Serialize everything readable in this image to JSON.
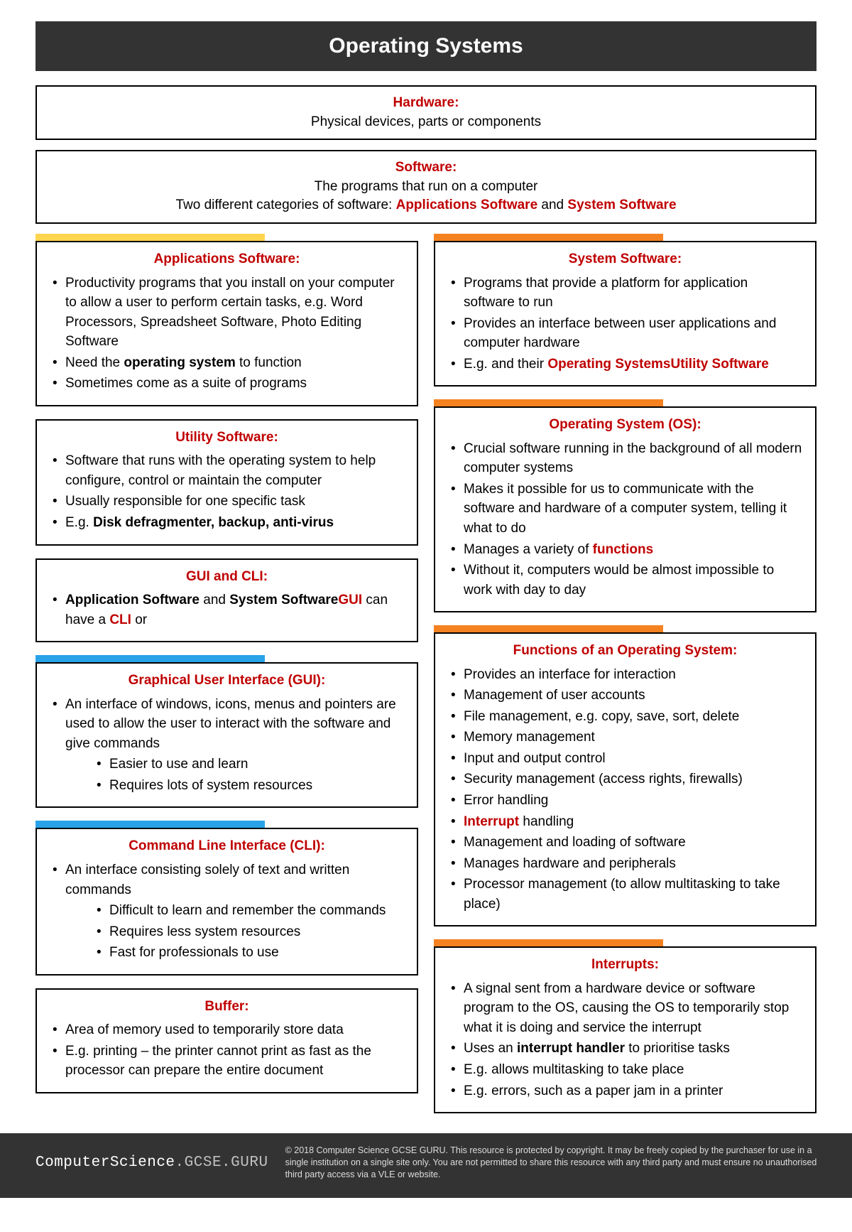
{
  "colors": {
    "title_bg": "#333333",
    "title_fg": "#ffffff",
    "heading_red": "#c00000",
    "body_text": "#000000",
    "tab_yellow": "#ffd54f",
    "tab_orange": "#f58220",
    "tab_blue": "#29a3e8",
    "footer_bg": "#333333",
    "footer_text": "#dddddd"
  },
  "title": "Operating Systems",
  "hardware": {
    "heading": "Hardware:",
    "line": "Physical devices, parts or components"
  },
  "software": {
    "heading": "Software:",
    "line1": "The programs that run on a computer",
    "line2_a": "Two different categories of software: ",
    "line2_b": "Applications Software",
    "line2_c": " and ",
    "line2_d": "System Software"
  },
  "left": {
    "apps": {
      "tab": "yellow",
      "title": "Applications Software:",
      "items": [
        {
          "pre": "Productivity programs that you install on your computer to allow a user to perform certain tasks, e.g. Word Processors, Spreadsheet Software, Photo Editing Software"
        },
        {
          "pre": "Need the ",
          "bold": "operating system",
          "post": " to function"
        },
        {
          "pre": "Sometimes come as a suite of programs"
        }
      ]
    },
    "utility": {
      "title": "Utility Software:",
      "items": [
        {
          "pre": "Software that runs with the operating system to help configure, control or maintain the computer"
        },
        {
          "pre": "Usually responsible for one specific task"
        },
        {
          "pre": "E.g. ",
          "bold": "Disk defragmenter, backup, anti-virus"
        }
      ]
    },
    "guicli": {
      "title": "GUI and CLI:",
      "items": [
        {
          "bold": "Application Software",
          "mid": " and ",
          "bold2": "System Software",
          "post": " can have a ",
          "red": "GUI",
          "post2": " or ",
          "red2": "CLI"
        }
      ]
    },
    "gui": {
      "tab": "blue",
      "title": "Graphical User Interface (GUI):",
      "items": [
        {
          "pre": "An interface of windows, icons, menus and pointers are used to allow the user to interact with the software and give commands",
          "sub": [
            "Easier to use and learn",
            "Requires lots of system resources"
          ]
        }
      ]
    },
    "cli": {
      "tab": "blue",
      "title": "Command Line Interface (CLI):",
      "items": [
        {
          "pre": "An interface consisting solely of text and written commands",
          "sub": [
            "Difficult to learn and remember the commands",
            "Requires less system resources",
            "Fast for professionals to use"
          ]
        }
      ]
    },
    "buffer": {
      "title": "Buffer:",
      "items": [
        {
          "pre": "Area of memory used to temporarily store data"
        },
        {
          "pre": "E.g. printing – the printer cannot print as fast as the processor can prepare the entire document"
        }
      ]
    }
  },
  "right": {
    "syssw": {
      "tab": "orange",
      "title": "System Software:",
      "items": [
        {
          "pre": "Programs that provide a platform for application software to run"
        },
        {
          "pre": "Provides an interface between user applications and computer hardware"
        },
        {
          "pre": "E.g. ",
          "red": "Operating Systems",
          "mid": " and their ",
          "red2": "Utility Software"
        }
      ]
    },
    "os": {
      "tab": "orange",
      "title": "Operating System (OS):",
      "items": [
        {
          "pre": "Crucial software running in the background of all modern computer systems"
        },
        {
          "pre": "Makes it possible for us to communicate with the software and hardware of a computer system, telling it what to do"
        },
        {
          "pre": "Manages a variety of ",
          "red": "functions"
        },
        {
          "pre": "Without it, computers would be almost impossible to work with day to day"
        }
      ]
    },
    "functions": {
      "tab": "orange",
      "title": "Functions of an Operating System:",
      "items": [
        {
          "pre": "Provides an interface for interaction"
        },
        {
          "pre": "Management of user accounts"
        },
        {
          "pre": "File management, e.g. copy, save, sort, delete"
        },
        {
          "pre": "Memory management"
        },
        {
          "pre": "Input and output control"
        },
        {
          "pre": "Security management (access rights, firewalls)"
        },
        {
          "pre": "Error handling"
        },
        {
          "red": "Interrupt",
          "post": " handling"
        },
        {
          "pre": "Management and loading of software"
        },
        {
          "pre": "Manages hardware and peripherals"
        },
        {
          "pre": "Processor management (to allow multitasking to take place)"
        }
      ]
    },
    "interrupts": {
      "tab": "orange",
      "title": "Interrupts:",
      "items": [
        {
          "pre": "A signal sent from a hardware device or software program to the OS, causing the OS to temporarily stop what it is doing and service the interrupt"
        },
        {
          "pre": "Uses an ",
          "bold": "interrupt handler",
          "post": " to prioritise tasks"
        },
        {
          "pre": "E.g. allows multitasking to take place"
        },
        {
          "pre": "E.g. errors, such as a paper jam in a printer"
        }
      ]
    }
  },
  "footer": {
    "brand_a": "ComputerScience",
    "brand_b": ".GCSE",
    "brand_c": ".GURU",
    "copy": "© 2018 Computer Science GCSE GURU.  This resource is protected by copyright.  It may be freely copied by the purchaser for use in a single institution on a single site only. You are not permitted to share this resource with any third party and must ensure no unauthorised third party access via a VLE or website."
  }
}
